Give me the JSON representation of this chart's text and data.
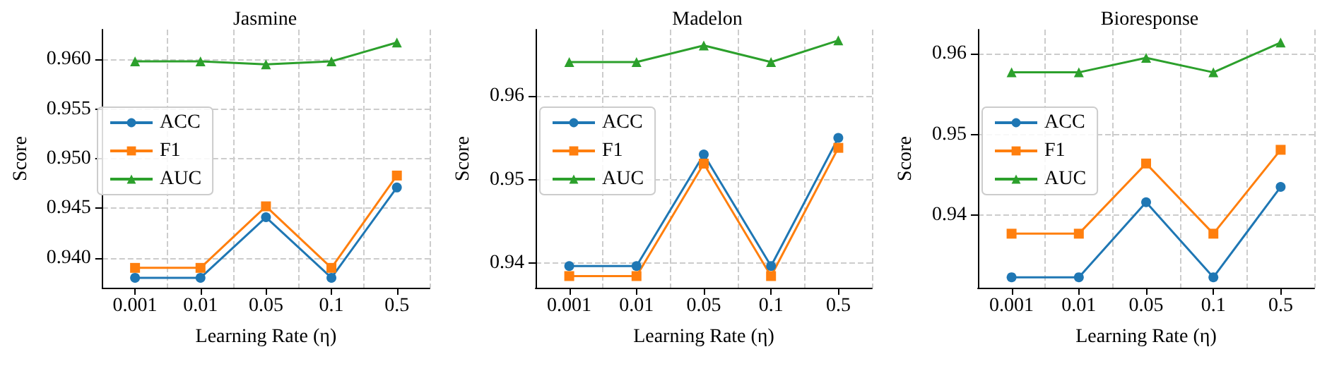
{
  "chart_data": [
    {
      "type": "line",
      "title": "Jasmine",
      "xlabel": "Learning Rate (η)",
      "ylabel": "Score",
      "categories": [
        "0.001",
        "0.01",
        "0.05",
        "0.1",
        "0.5"
      ],
      "ylim": [
        0.937,
        0.963
      ],
      "yticks": [
        {
          "value": 0.94,
          "label": "0.940"
        },
        {
          "value": 0.945,
          "label": "0.945"
        },
        {
          "value": 0.95,
          "label": "0.950"
        },
        {
          "value": 0.955,
          "label": "0.955"
        },
        {
          "value": 0.96,
          "label": "0.960"
        }
      ],
      "grid": true,
      "legend": "left",
      "series": [
        {
          "name": "ACC",
          "color": "#1f77b4",
          "marker": "circle",
          "values": [
            0.938,
            0.938,
            0.9441,
            0.938,
            0.9471
          ]
        },
        {
          "name": "F1",
          "color": "#ff7f0e",
          "marker": "square",
          "values": [
            0.939,
            0.939,
            0.9452,
            0.939,
            0.9483
          ]
        },
        {
          "name": "AUC",
          "color": "#2ca02c",
          "marker": "triangle",
          "values": [
            0.9598,
            0.9598,
            0.9595,
            0.9598,
            0.9617
          ]
        }
      ]
    },
    {
      "type": "line",
      "title": "Madelon",
      "xlabel": "Learning Rate (η)",
      "ylabel": "Score",
      "categories": [
        "0.001",
        "0.01",
        "0.05",
        "0.1",
        "0.5"
      ],
      "ylim": [
        0.937,
        0.968
      ],
      "yticks": [
        {
          "value": 0.94,
          "label": "0.94"
        },
        {
          "value": 0.95,
          "label": "0.95"
        },
        {
          "value": 0.96,
          "label": "0.96"
        }
      ],
      "grid": true,
      "legend": "left",
      "series": [
        {
          "name": "ACC",
          "color": "#1f77b4",
          "marker": "circle",
          "values": [
            0.9396,
            0.9396,
            0.953,
            0.9396,
            0.955
          ]
        },
        {
          "name": "F1",
          "color": "#ff7f0e",
          "marker": "square",
          "values": [
            0.9384,
            0.9384,
            0.9519,
            0.9384,
            0.9538
          ]
        },
        {
          "name": "AUC",
          "color": "#2ca02c",
          "marker": "triangle",
          "values": [
            0.9641,
            0.9641,
            0.9661,
            0.9641,
            0.9667
          ]
        }
      ]
    },
    {
      "type": "line",
      "title": "Bioresponse",
      "xlabel": "Learning Rate (η)",
      "ylabel": "Score",
      "categories": [
        "0.001",
        "0.01",
        "0.05",
        "0.1",
        "0.5"
      ],
      "ylim": [
        0.931,
        0.963
      ],
      "yticks": [
        {
          "value": 0.94,
          "label": "0.94"
        },
        {
          "value": 0.95,
          "label": "0.95"
        },
        {
          "value": 0.96,
          "label": "0.96"
        }
      ],
      "grid": true,
      "legend": "left",
      "series": [
        {
          "name": "ACC",
          "color": "#1f77b4",
          "marker": "circle",
          "values": [
            0.9323,
            0.9323,
            0.9416,
            0.9323,
            0.9435
          ]
        },
        {
          "name": "F1",
          "color": "#ff7f0e",
          "marker": "square",
          "values": [
            0.9377,
            0.9377,
            0.9464,
            0.9377,
            0.9481
          ]
        },
        {
          "name": "AUC",
          "color": "#2ca02c",
          "marker": "triangle",
          "values": [
            0.9577,
            0.9577,
            0.9595,
            0.9577,
            0.9614
          ]
        }
      ]
    }
  ]
}
